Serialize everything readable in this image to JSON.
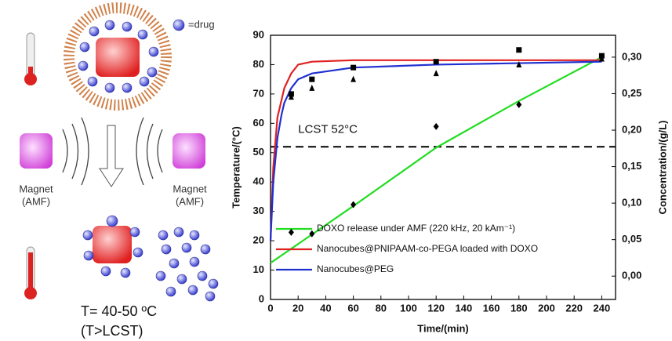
{
  "chart_data": {
    "type": "line",
    "x_label": "Time/(min)",
    "y_label": "Temperature/(°C)",
    "y2_label": "Concentration/(g/L)",
    "xlim": [
      0,
      250
    ],
    "xticks": [
      0,
      20,
      40,
      60,
      80,
      100,
      120,
      140,
      160,
      180,
      200,
      220,
      240
    ],
    "ylim": [
      0,
      90
    ],
    "yticks": [
      0,
      10,
      20,
      30,
      40,
      50,
      60,
      70,
      80,
      90
    ],
    "y2lim": [
      -0.032,
      0.33
    ],
    "y2ticks": [
      {
        "value": 0,
        "label": "0,00"
      },
      {
        "value": 0.05,
        "label": "0,05"
      },
      {
        "value": 0.1,
        "label": "0,10"
      },
      {
        "value": 0.15,
        "label": "0,15"
      },
      {
        "value": 0.2,
        "label": "0,20"
      },
      {
        "value": 0.25,
        "label": "0,25"
      },
      {
        "value": 0.3,
        "label": "0,30"
      }
    ],
    "hlines": [
      {
        "y": 52,
        "label": "LCST 52°C",
        "style": "dashed",
        "color": "#000000"
      }
    ],
    "series": [
      {
        "name": "DOXO release under AMF (220 kHz, 20 kAm⁻¹)",
        "color": "#22dd22",
        "axis": "y2",
        "mode": "line",
        "x": [
          0,
          60,
          120,
          180,
          240
        ],
        "values": [
          0.018,
          0.096,
          0.176,
          0.24,
          0.3
        ]
      },
      {
        "name": "Nanocubes@PNIPAAM-co-PEGA loaded with DOXO",
        "color": "#e02020",
        "mode": "line",
        "x": [
          0,
          2,
          5,
          8,
          10,
          15,
          20,
          30,
          60,
          120,
          180,
          240
        ],
        "values": [
          20,
          45,
          62,
          68,
          72,
          77,
          80,
          81,
          81.5,
          81.5,
          81.5,
          81.5
        ]
      },
      {
        "name": "Nanocubes@PEG",
        "color": "#2030d0",
        "mode": "line",
        "x": [
          0,
          2,
          5,
          8,
          10,
          15,
          20,
          30,
          60,
          120,
          180,
          240
        ],
        "values": [
          20,
          40,
          55,
          63,
          67,
          72,
          75,
          77,
          79,
          80,
          80.5,
          81
        ]
      },
      {
        "color": "#000000",
        "mode": "markers",
        "marker": "square",
        "x": [
          15,
          30,
          60,
          120,
          180,
          240
        ],
        "values": [
          70,
          75,
          79,
          81,
          85,
          83
        ]
      },
      {
        "color": "#000000",
        "mode": "markers",
        "marker": "triangle",
        "x": [
          15,
          30,
          60,
          120,
          180,
          240
        ],
        "values": [
          69,
          72,
          75,
          77,
          80,
          82
        ]
      },
      {
        "color": "#000000",
        "mode": "markers",
        "marker": "diamond",
        "axis": "y2",
        "x": [
          15,
          30,
          60,
          120,
          180,
          240
        ],
        "values": [
          0.06,
          0.058,
          0.098,
          0.205,
          0.235,
          0.3
        ]
      }
    ]
  },
  "schematic": {
    "drug_label": "=drug",
    "magnet_left": [
      "Magnet",
      "(AMF)"
    ],
    "magnet_right": [
      "Magnet",
      "(AMF)"
    ],
    "temperature": "T= 40-50 ºC",
    "condition": "(T>LCST)"
  }
}
